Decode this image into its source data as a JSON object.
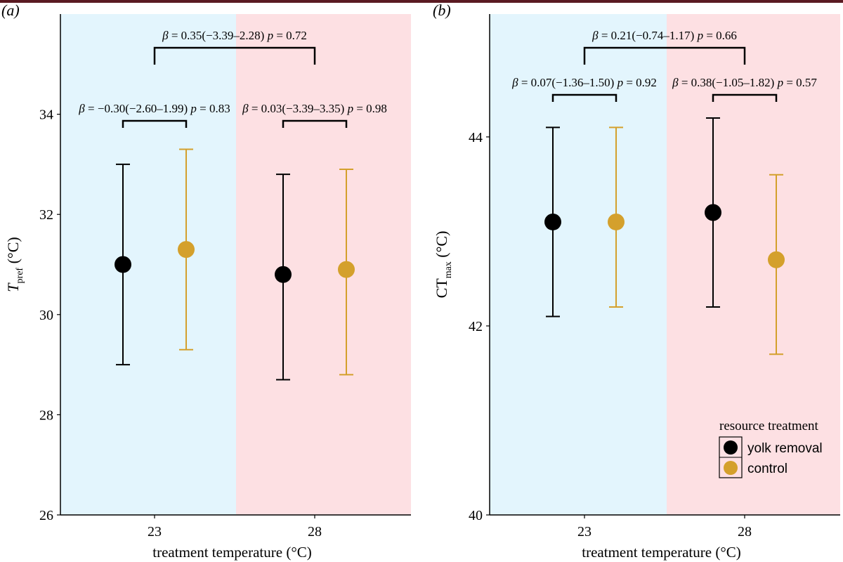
{
  "colors": {
    "cool_band": "#e3f5fd",
    "warm_band": "#fde0e3",
    "yolk_removal": "#000000",
    "control": "#d4a02c"
  },
  "legend": {
    "title": "resource treatment",
    "items": [
      "yolk removal",
      "control"
    ]
  },
  "chart_data": [
    {
      "type": "scatter",
      "panel_label": "(a)",
      "title": "",
      "xlabel": "treatment temperature (°C)",
      "ylabel_main": "T",
      "ylabel_sub": "pref",
      "ylabel_unit": " (°C)",
      "categories": [
        "23",
        "28"
      ],
      "ylim": [
        26,
        36
      ],
      "yticks": [
        26,
        28,
        30,
        32,
        34
      ],
      "series": [
        {
          "name": "yolk removal",
          "values": [
            31.0,
            30.8
          ],
          "lower": [
            29.0,
            28.7
          ],
          "upper": [
            33.0,
            32.8
          ]
        },
        {
          "name": "control",
          "values": [
            31.3,
            30.9
          ],
          "lower": [
            29.3,
            28.8
          ],
          "upper": [
            33.3,
            32.9
          ]
        }
      ],
      "annotations": [
        {
          "text": "β = −0.30(−2.60–1.99) p = 0.83",
          "span": [
            "23",
            "23"
          ],
          "level": 33.8
        },
        {
          "text": "β = 0.03(−3.39–3.35) p = 0.98",
          "span": [
            "28",
            "28"
          ],
          "level": 33.8
        },
        {
          "text": "β = 0.35(−3.39–2.28) p = 0.72",
          "span": [
            "23",
            "28"
          ],
          "level": 34.9
        }
      ]
    },
    {
      "type": "scatter",
      "panel_label": "(b)",
      "title": "",
      "xlabel": "treatment temperature (°C)",
      "ylabel_main": "CT",
      "ylabel_sub": "max",
      "ylabel_unit": " (°C)",
      "categories": [
        "23",
        "28"
      ],
      "ylim": [
        40,
        45.3
      ],
      "yticks": [
        40,
        42,
        44
      ],
      "series": [
        {
          "name": "yolk removal",
          "values": [
            43.1,
            43.2
          ],
          "lower": [
            42.1,
            42.2
          ],
          "upper": [
            44.1,
            44.2
          ]
        },
        {
          "name": "control",
          "values": [
            43.1,
            42.7
          ],
          "lower": [
            42.2,
            41.7
          ],
          "upper": [
            44.1,
            43.6
          ]
        }
      ],
      "annotations": [
        {
          "text": "β = 0.07(−1.36–1.50) p = 0.92",
          "span": [
            "23",
            "23"
          ],
          "level": 44.4
        },
        {
          "text": "β = 0.38(−1.05–1.82) p = 0.57",
          "span": [
            "28",
            "28"
          ],
          "level": 44.4
        },
        {
          "text": "β = 0.21(−0.74–1.17) p = 0.66",
          "span": [
            "23",
            "28"
          ],
          "level": 44.9
        }
      ]
    }
  ]
}
